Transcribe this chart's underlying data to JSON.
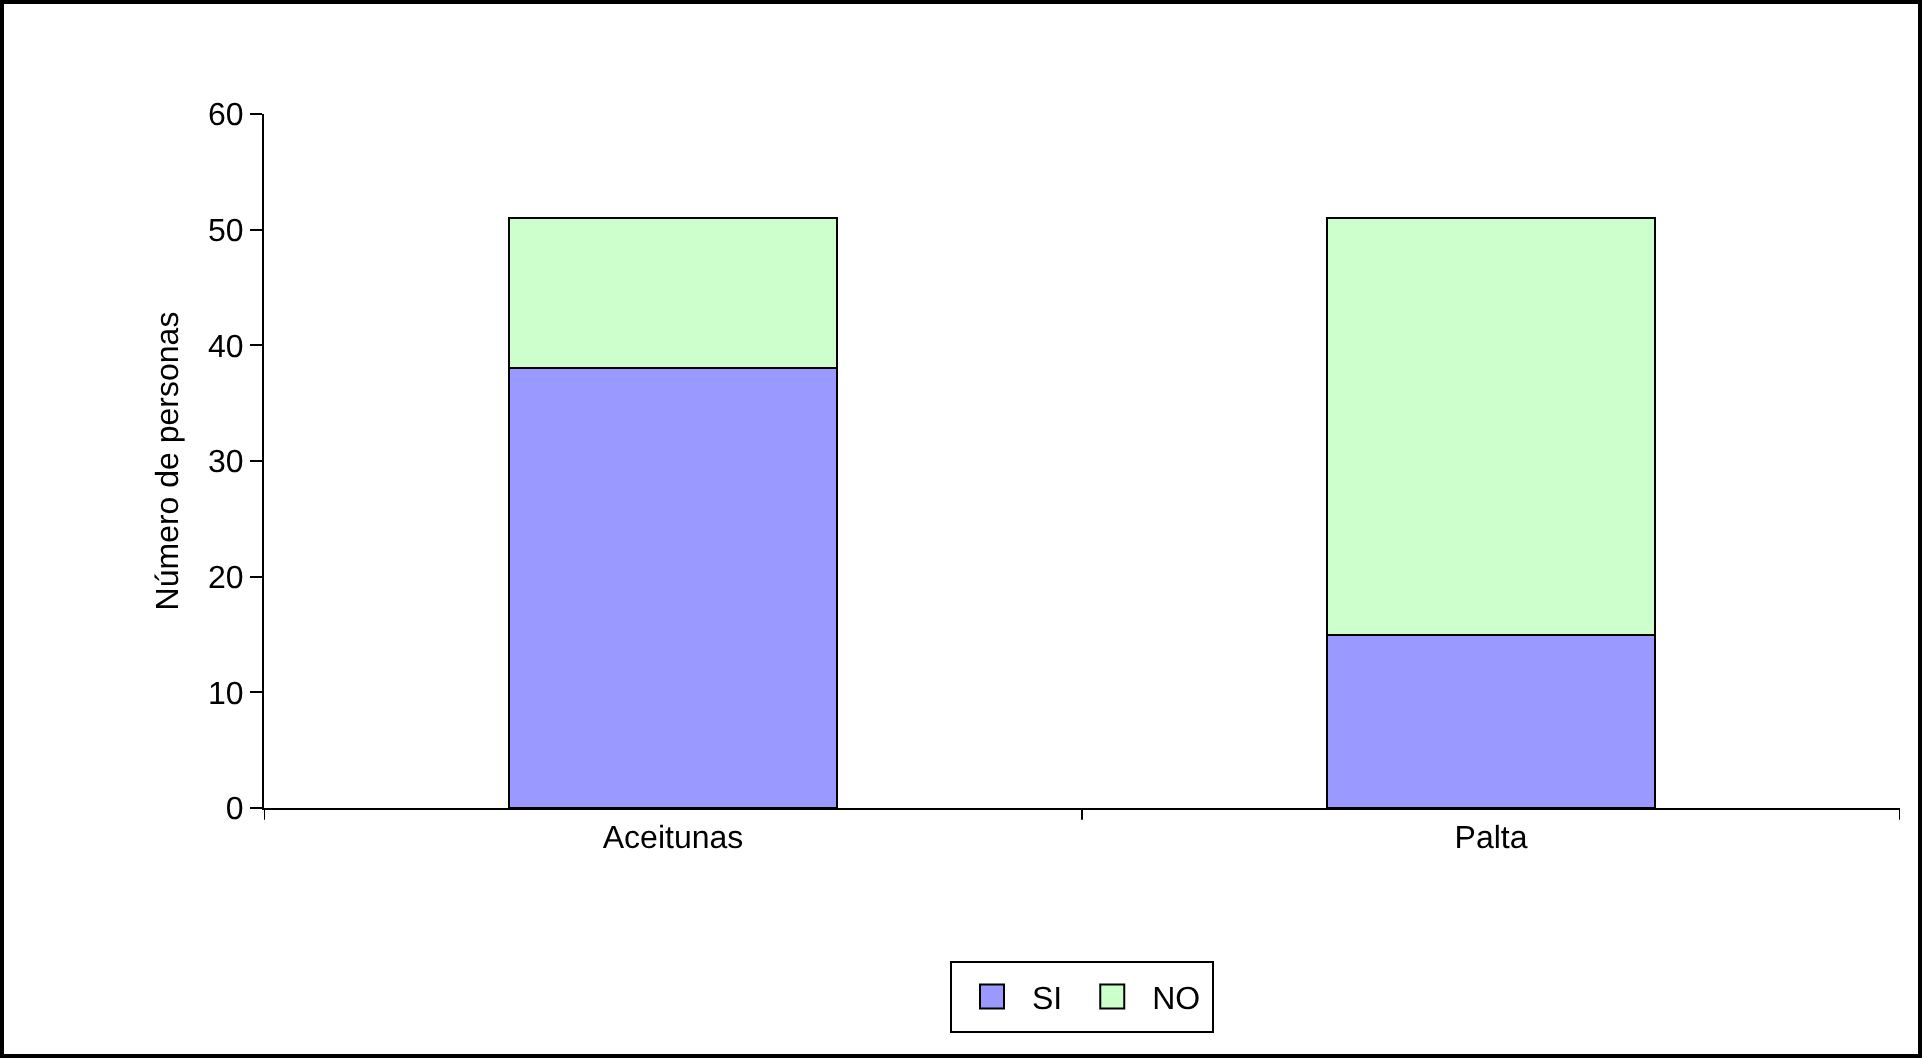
{
  "chart_data": {
    "type": "bar",
    "stacked": true,
    "ylabel": "Número de personas",
    "categories": [
      "Aceitunas",
      "Palta"
    ],
    "series": [
      {
        "name": "SI",
        "color": "#9999ff",
        "values": [
          38,
          15
        ]
      },
      {
        "name": "NO",
        "color": "#ccffcc",
        "values": [
          13,
          36
        ]
      }
    ],
    "ylim": [
      0,
      60
    ],
    "yticks": [
      0,
      10,
      20,
      30,
      40,
      50,
      60
    ],
    "grid": false,
    "legend": "bottom"
  }
}
